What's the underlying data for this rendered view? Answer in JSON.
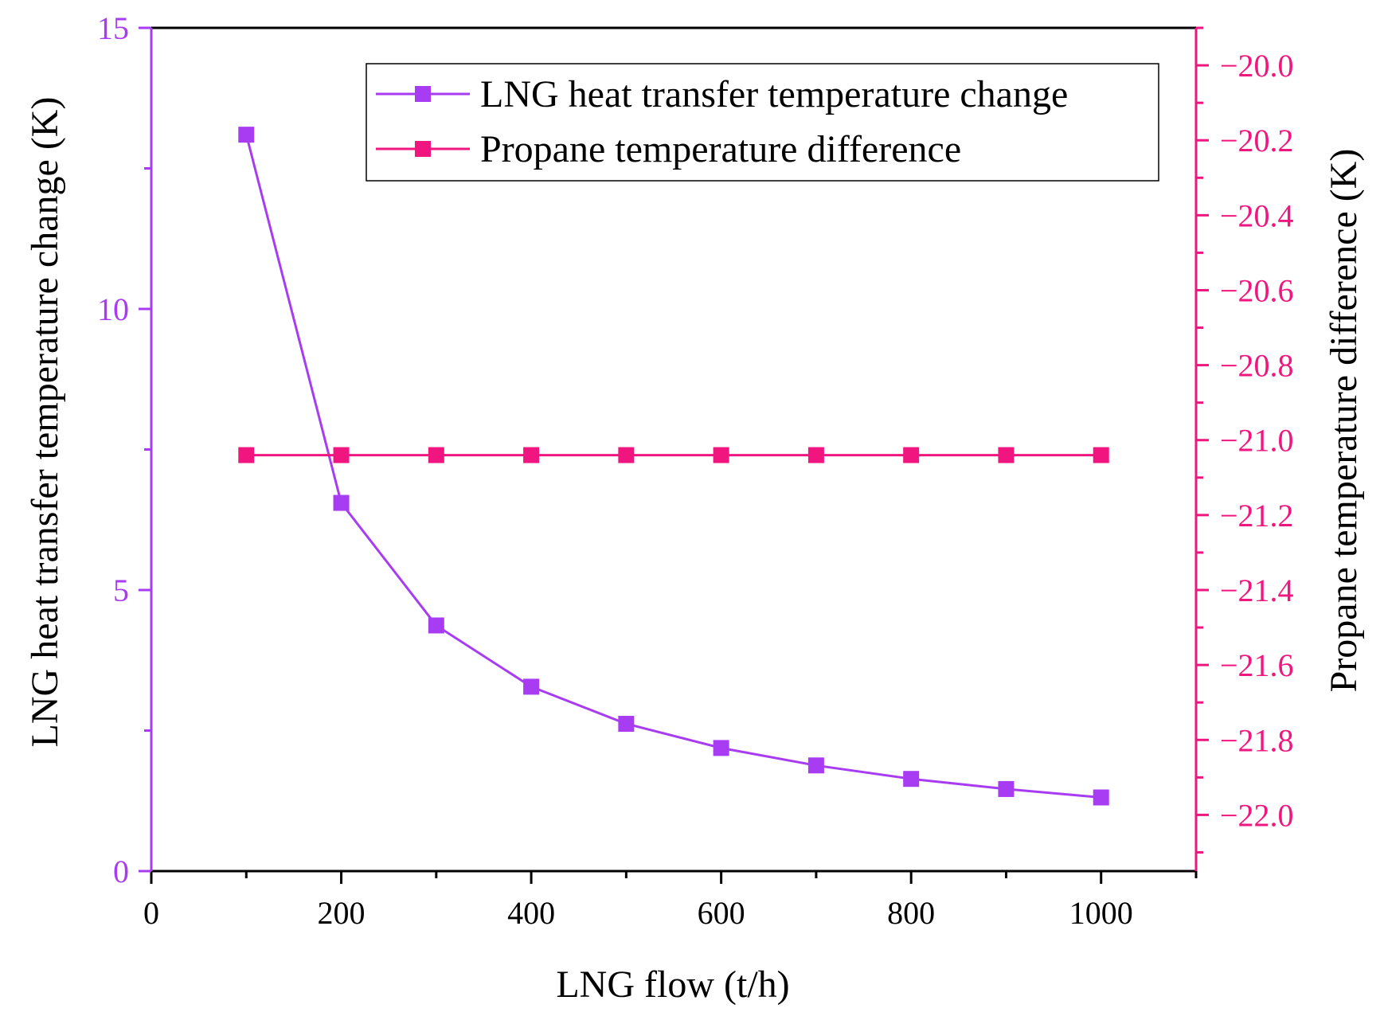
{
  "chart_data": {
    "type": "line",
    "title": "",
    "xlabel": "LNG flow (t/h)",
    "ylabel_left": "LNG heat transfer temperature change (K)",
    "ylabel_right": "Propane temperature difference (K)",
    "xlim": [
      0,
      1100
    ],
    "ylim_left": [
      0,
      15
    ],
    "ylim_right": [
      -22.15,
      -19.9
    ],
    "x_ticks": [
      0,
      200,
      400,
      600,
      800,
      1000
    ],
    "x_tick_labels": [
      "0",
      "200",
      "400",
      "600",
      "800",
      "1000"
    ],
    "y_left_ticks": [
      0,
      5,
      10,
      15
    ],
    "y_left_tick_labels": [
      "0",
      "5",
      "10",
      "15"
    ],
    "y_right_ticks": [
      -22.0,
      -21.8,
      -21.6,
      -21.4,
      -21.2,
      -21.0,
      -20.8,
      -20.6,
      -20.4,
      -20.2,
      -20.0
    ],
    "y_right_tick_labels": [
      "−22.0",
      "−21.8",
      "−21.6",
      "−21.4",
      "−21.2",
      "−21.0",
      "−20.8",
      "−20.6",
      "−20.4",
      "−20.2",
      "−20.0"
    ],
    "x": [
      100,
      200,
      300,
      400,
      500,
      600,
      700,
      800,
      900,
      1000
    ],
    "series": [
      {
        "name": "LNG heat transfer temperature change",
        "axis": "left",
        "color": "#a83cf2",
        "values": [
          13.1,
          6.55,
          4.37,
          3.28,
          2.62,
          2.19,
          1.88,
          1.64,
          1.46,
          1.31
        ]
      },
      {
        "name": "Propane temperature difference",
        "axis": "right",
        "color": "#f0157f",
        "values": [
          -21.04,
          -21.04,
          -21.04,
          -21.04,
          -21.04,
          -21.04,
          -21.04,
          -21.04,
          -21.04,
          -21.04
        ]
      }
    ],
    "legend_position": "top-right",
    "axis_colors": {
      "left": "#a83cf2",
      "right": "#f0157f",
      "bottom": "#000000"
    }
  }
}
